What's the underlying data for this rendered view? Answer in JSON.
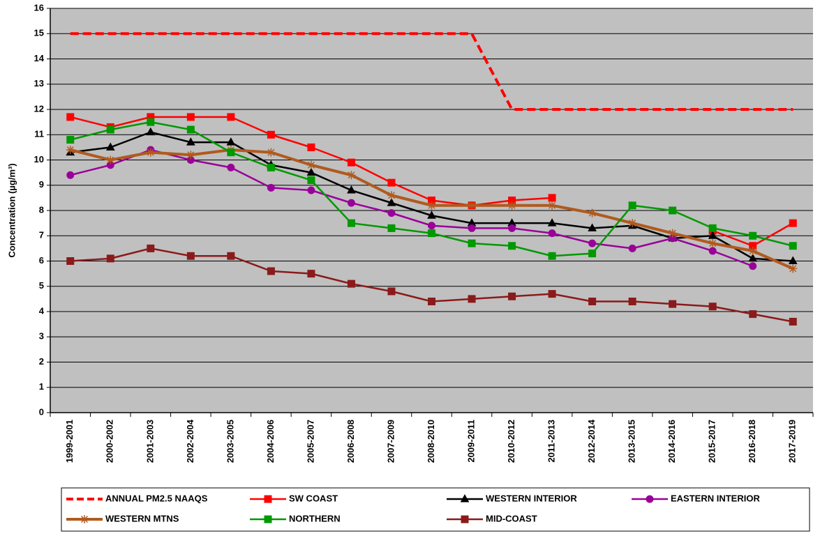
{
  "chart_data": {
    "type": "line",
    "y_label": "Concentration (µg/m³)",
    "categories": [
      "1999-2001",
      "2000-2002",
      "2001-2003",
      "2002-2004",
      "2003-2005",
      "2004-2006",
      "2005-2007",
      "2006-2008",
      "2007-2009",
      "2008-2010",
      "2009-2011",
      "2010-2012",
      "2011-2013",
      "2012-2014",
      "2013-2015",
      "2014-2016",
      "2015-2017",
      "2016-2018",
      "2017-2019"
    ],
    "ylim": [
      0,
      16
    ],
    "yticks": [
      0,
      1,
      2,
      3,
      4,
      5,
      6,
      7,
      8,
      9,
      10,
      11,
      12,
      13,
      14,
      15,
      16
    ],
    "grid": true,
    "legend": "bottom",
    "series": [
      {
        "name": "ANNUAL PM2.5 NAAQS",
        "color": "#ff0000",
        "dash": true,
        "marker": "none",
        "values": [
          15,
          15,
          15,
          15,
          15,
          15,
          15,
          15,
          15,
          15,
          15,
          12,
          12,
          12,
          12,
          12,
          12,
          12,
          12
        ]
      },
      {
        "name": "SW COAST",
        "color": "#ff0000",
        "marker": "square",
        "values": [
          11.7,
          11.3,
          11.7,
          11.7,
          11.7,
          11.0,
          10.5,
          9.9,
          9.1,
          8.4,
          8.2,
          8.4,
          8.5,
          null,
          null,
          null,
          7.2,
          6.6,
          7.5
        ]
      },
      {
        "name": "WESTERN INTERIOR",
        "color": "#000000",
        "marker": "triangle",
        "values": [
          10.3,
          10.5,
          11.1,
          10.7,
          10.7,
          9.8,
          9.5,
          8.8,
          8.3,
          7.8,
          7.5,
          7.5,
          7.5,
          7.3,
          7.4,
          6.9,
          7.0,
          6.1,
          6.0
        ]
      },
      {
        "name": "EASTERN INTERIOR",
        "color": "#990099",
        "marker": "circle",
        "values": [
          9.4,
          9.8,
          10.4,
          10.0,
          9.7,
          8.9,
          8.8,
          8.3,
          7.9,
          7.4,
          7.3,
          7.3,
          7.1,
          6.7,
          6.5,
          6.9,
          6.4,
          5.8,
          null
        ]
      },
      {
        "name": "WESTERN MTNS",
        "color": "#b05a1e",
        "marker": "star",
        "thick": true,
        "values": [
          10.4,
          10.0,
          10.3,
          10.2,
          10.4,
          10.3,
          9.8,
          9.4,
          8.6,
          8.2,
          8.2,
          8.2,
          8.2,
          7.9,
          7.5,
          7.1,
          6.7,
          6.4,
          5.7
        ]
      },
      {
        "name": "NORTHERN",
        "color": "#009900",
        "marker": "square",
        "values": [
          10.8,
          11.2,
          11.5,
          11.2,
          10.3,
          9.7,
          9.2,
          7.5,
          7.3,
          7.1,
          6.7,
          6.6,
          6.2,
          6.3,
          8.2,
          8.0,
          7.3,
          7.0,
          6.6
        ]
      },
      {
        "name": "MID-COAST",
        "color": "#8b1a1a",
        "marker": "square",
        "values": [
          6.0,
          6.1,
          6.5,
          6.2,
          6.2,
          5.6,
          5.5,
          5.1,
          4.8,
          4.4,
          4.5,
          4.6,
          4.7,
          4.4,
          4.4,
          4.3,
          4.2,
          3.9,
          3.6
        ]
      }
    ]
  }
}
